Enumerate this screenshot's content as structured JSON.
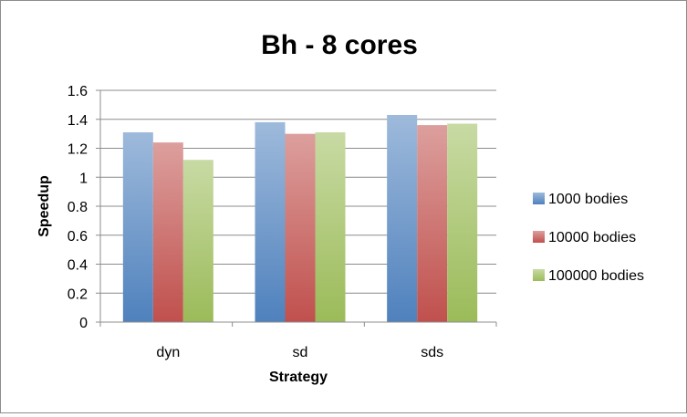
{
  "chart_data": {
    "type": "bar",
    "title": "Bh - 8 cores",
    "xlabel": "Strategy",
    "ylabel": "Speedup",
    "categories": [
      "dyn",
      "sd",
      "sds"
    ],
    "series": [
      {
        "name": "1000 bodies",
        "values": [
          1.31,
          1.38,
          1.43
        ],
        "color": "#4f81bd"
      },
      {
        "name": "10000 bodies",
        "values": [
          1.24,
          1.3,
          1.36
        ],
        "color": "#c0504d"
      },
      {
        "name": "100000 bodies",
        "values": [
          1.12,
          1.31,
          1.37
        ],
        "color": "#9bbb59"
      }
    ],
    "ylim": [
      0,
      1.6
    ],
    "yticks": [
      "0",
      "0.2",
      "0.4",
      "0.6",
      "0.8",
      "1",
      "1.2",
      "1.4",
      "1.6"
    ],
    "grid": true,
    "legend_position": "right"
  }
}
